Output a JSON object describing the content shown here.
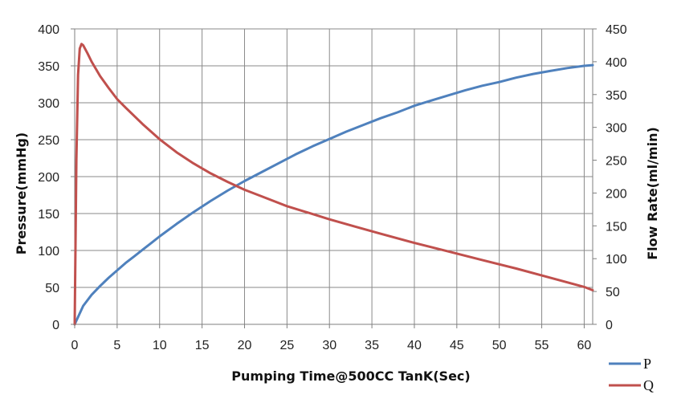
{
  "chart_data": {
    "type": "line",
    "xlabel": "Pumping Time@500CC TanK(Sec)",
    "ylabel": "Pressure(mmHg)",
    "y2label": "Flow Rate(ml/min)",
    "xlim": [
      0,
      61
    ],
    "ylim": [
      0,
      400
    ],
    "y2lim": [
      0,
      450
    ],
    "xticks": [
      0,
      5,
      10,
      15,
      20,
      25,
      30,
      35,
      40,
      45,
      50,
      55,
      60
    ],
    "yticks": [
      0,
      50,
      100,
      150,
      200,
      250,
      300,
      350,
      400
    ],
    "y2ticks": [
      0,
      50,
      100,
      150,
      200,
      250,
      300,
      350,
      400,
      450
    ],
    "grid": true,
    "legend_position": "bottom-right",
    "series": [
      {
        "name": "P",
        "axis": "left",
        "color": "#4f81bd",
        "x": [
          0,
          1,
          2,
          3,
          4,
          5,
          6,
          7,
          8,
          9,
          10,
          12,
          14,
          16,
          18,
          20,
          22,
          24,
          26,
          28,
          30,
          32,
          34,
          36,
          38,
          40,
          42,
          44,
          46,
          48,
          50,
          52,
          54,
          56,
          58,
          60,
          61
        ],
        "values": [
          0,
          25,
          40,
          52,
          63,
          73,
          83,
          92,
          101,
          110,
          119,
          136,
          152,
          167,
          181,
          194,
          206,
          218,
          230,
          241,
          251,
          261,
          270,
          279,
          287,
          296,
          303,
          310,
          317,
          323,
          328,
          334,
          339,
          343,
          347,
          350,
          351
        ]
      },
      {
        "name": "Q",
        "axis": "right",
        "color": "#c0504d",
        "x": [
          0,
          0.2,
          0.4,
          0.6,
          0.8,
          1,
          1.5,
          2,
          3,
          4,
          5,
          6,
          8,
          10,
          12,
          14,
          16,
          18,
          20,
          22,
          25,
          28,
          30,
          33,
          36,
          40,
          44,
          48,
          52,
          56,
          58,
          60,
          61
        ],
        "values": [
          0,
          250,
          380,
          420,
          427,
          425,
          413,
          400,
          378,
          360,
          343,
          330,
          305,
          282,
          262,
          245,
          230,
          217,
          205,
          195,
          180,
          168,
          160,
          149,
          138,
          124,
          111,
          98,
          85,
          71,
          64,
          57,
          52
        ]
      }
    ]
  }
}
